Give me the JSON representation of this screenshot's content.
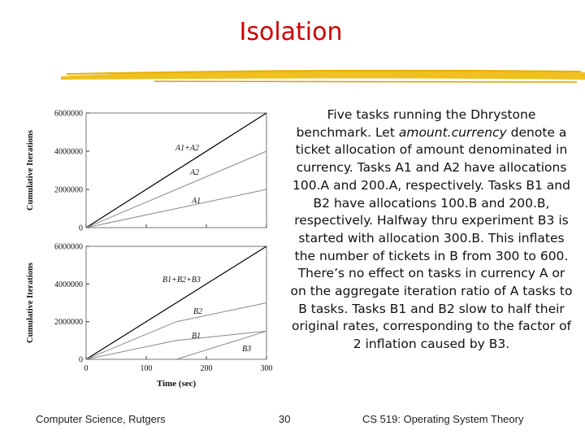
{
  "slide": {
    "title": "Isolation",
    "paragraph": [
      {
        "text": "Five tasks running the Dhrystone benchmark.  Let ",
        "italic": false
      },
      {
        "text": "amount.currency",
        "italic": true
      },
      {
        "text": " denote a ticket allocation of amount denominated in currency.  Tasks A1 and A2 have allocations 100.A and 200.A, respectively. Tasks B1 and B2 have allocations 100.B and 200.B, respectively. Halfway thru experiment B3 is started with allocation 300.B. This inflates the number of tickets in B from 300 to 600. There’s no effect on tasks in currency A or on the aggregate iteration ratio of A tasks to B tasks.  Tasks B1 and B2 slow to half their original rates, corresponding to the factor of 2 inflation caused by B3.",
        "italic": false
      }
    ]
  },
  "footer": {
    "left": "Computer Science, Rutgers",
    "page_number": "30",
    "right": "CS 519: Operating System Theory"
  },
  "colors": {
    "title": "#cc0000",
    "swoosh": "#f0c020"
  },
  "chart_data": [
    {
      "type": "line",
      "ylabel": "Cumulative Iterations",
      "xlim": [
        0,
        300
      ],
      "ylim": [
        0,
        6000000
      ],
      "yticks": [
        "0",
        "2000000",
        "4000000",
        "6000000"
      ],
      "series": [
        {
          "name": "A1+A2",
          "x": [
            0,
            300
          ],
          "y": [
            0,
            6000000
          ],
          "color": "#000000"
        },
        {
          "name": "A2",
          "x": [
            0,
            300
          ],
          "y": [
            0,
            4000000
          ],
          "color": "#888888"
        },
        {
          "name": "A1",
          "x": [
            0,
            300
          ],
          "y": [
            0,
            2000000
          ],
          "color": "#888888"
        }
      ]
    },
    {
      "type": "line",
      "xlabel": "Time (sec)",
      "ylabel": "Cumulative Iterations",
      "xlim": [
        0,
        300
      ],
      "ylim": [
        0,
        6000000
      ],
      "xticks": [
        "0",
        "100",
        "200",
        "300"
      ],
      "yticks": [
        "0",
        "2000000",
        "4000000",
        "6000000"
      ],
      "series": [
        {
          "name": "B1+B2+B3",
          "x": [
            0,
            300
          ],
          "y": [
            0,
            6000000
          ],
          "color": "#000000"
        },
        {
          "name": "B2",
          "x": [
            0,
            150,
            300
          ],
          "y": [
            0,
            2000000,
            3000000
          ],
          "color": "#888888"
        },
        {
          "name": "B1",
          "x": [
            0,
            150,
            300
          ],
          "y": [
            0,
            1000000,
            1500000
          ],
          "color": "#888888"
        },
        {
          "name": "B3",
          "x": [
            150,
            300
          ],
          "y": [
            0,
            1500000
          ],
          "color": "#888888"
        }
      ]
    }
  ]
}
